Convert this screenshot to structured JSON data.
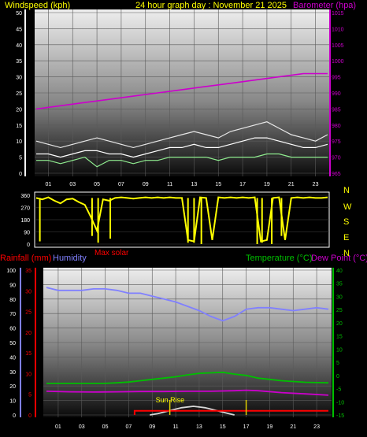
{
  "header": {
    "left_title": "Windspeed (kph)",
    "center_title": "24 hour graph day : November 21 2025",
    "right_title": "Barometer (hpa)"
  },
  "labels": {
    "rain": "Rainfall (mm)",
    "humidity": "Humidity",
    "max_solar": "Max solar",
    "temperature": "Temperature (°C)",
    "dew_point": "Dew Point (°C)",
    "sun_rise": "Sun Rise"
  },
  "colors": {
    "windspeed": "#ffffff",
    "gust": "#e8e8e8",
    "avg_wind": "#90ee90",
    "barometer": "#cc00cc",
    "direction": "#ffff00",
    "rain": "#ff0000",
    "humidity": "#8080ff",
    "temperature": "#00c000",
    "dew_point": "#cc00cc",
    "solar": "#d8d8d8",
    "title": "#ffff00",
    "axis_text": "#ffffff"
  },
  "chart_data": [
    {
      "type": "line",
      "name": "wind_barometer",
      "x_ticks": [
        "01",
        "03",
        "05",
        "07",
        "09",
        "11",
        "13",
        "15",
        "17",
        "19",
        "21",
        "23"
      ],
      "y_left_label": "Windspeed (kph)",
      "y_left_ticks": [
        0,
        5,
        10,
        15,
        20,
        25,
        30,
        35,
        40,
        45,
        50
      ],
      "y_left_range": [
        0,
        50
      ],
      "y_right_label": "Barometer (hpa)",
      "y_right_ticks": [
        965,
        970,
        975,
        980,
        985,
        990,
        995,
        1000,
        1005,
        1010,
        1015
      ],
      "y_right_range": [
        965,
        1015
      ],
      "series": [
        {
          "key": "gust",
          "hours": [
            0,
            1,
            2,
            3,
            4,
            5,
            6,
            7,
            8,
            9,
            10,
            11,
            12,
            13,
            14,
            15,
            16,
            17,
            18,
            19,
            20,
            21,
            22,
            23,
            24
          ],
          "values": [
            10,
            9,
            8,
            9,
            10,
            11,
            10,
            9,
            8,
            9,
            10,
            11,
            12,
            13,
            12,
            11,
            13,
            14,
            15,
            16,
            14,
            12,
            11,
            10,
            12
          ],
          "axis": "left"
        },
        {
          "key": "windspeed",
          "hours": [
            0,
            1,
            2,
            3,
            4,
            5,
            6,
            7,
            8,
            9,
            10,
            11,
            12,
            13,
            14,
            15,
            16,
            17,
            18,
            19,
            20,
            21,
            22,
            23,
            24
          ],
          "values": [
            6,
            6,
            5,
            6,
            7,
            7,
            6,
            6,
            5,
            6,
            7,
            8,
            8,
            9,
            8,
            8,
            9,
            10,
            11,
            11,
            10,
            9,
            8,
            8,
            9
          ],
          "axis": "left"
        },
        {
          "key": "avg_wind",
          "hours": [
            0,
            1,
            2,
            3,
            4,
            5,
            6,
            7,
            8,
            9,
            10,
            11,
            12,
            13,
            14,
            15,
            16,
            17,
            18,
            19,
            20,
            21,
            22,
            23,
            24
          ],
          "values": [
            4,
            4,
            3,
            4,
            5,
            2,
            4,
            4,
            3,
            4,
            4,
            5,
            5,
            5,
            5,
            4,
            5,
            5,
            5,
            6,
            6,
            5,
            5,
            5,
            5
          ],
          "axis": "left"
        },
        {
          "key": "barometer",
          "hours": [
            0,
            2,
            4,
            6,
            8,
            10,
            12,
            14,
            16,
            18,
            20,
            22,
            24
          ],
          "values": [
            985,
            986,
            987,
            988,
            989,
            990,
            991,
            992,
            993,
            994,
            995,
            996,
            996
          ],
          "axis": "right"
        }
      ]
    },
    {
      "type": "scatter",
      "name": "wind_direction",
      "y_ticks": [
        0,
        90,
        180,
        270,
        360
      ],
      "y_range": [
        0,
        360
      ],
      "compass": [
        "N",
        "W",
        "S",
        "E",
        "N"
      ],
      "series": [
        {
          "key": "direction",
          "hours": [
            0,
            0.5,
            1,
            1.5,
            2,
            2.5,
            3,
            3.5,
            4,
            4.5,
            5,
            5.5,
            6,
            6.5,
            7,
            7.5,
            8,
            8.5,
            9,
            9.5,
            10,
            10.5,
            11,
            11.5,
            12,
            12.5,
            13,
            13.5,
            14,
            14.5,
            15,
            15.5,
            16,
            16.5,
            17,
            17.5,
            18,
            18.5,
            19,
            19.5,
            20,
            20.5,
            21,
            21.5,
            22,
            22.5,
            23,
            23.5,
            24
          ],
          "values": [
            340,
            330,
            345,
            320,
            300,
            330,
            335,
            310,
            290,
            200,
            100,
            330,
            320,
            340,
            345,
            340,
            335,
            340,
            345,
            340,
            345,
            340,
            345,
            340,
            340,
            30,
            20,
            345,
            340,
            30,
            345,
            340,
            345,
            340,
            345,
            340,
            345,
            20,
            30,
            340,
            345,
            30,
            340,
            345,
            340,
            345,
            340,
            340,
            345
          ]
        }
      ],
      "drops": [
        {
          "hour": 0.3,
          "value": 20
        },
        {
          "hour": 4.6,
          "value": 60
        },
        {
          "hour": 5.1,
          "value": 10
        },
        {
          "hour": 6.1,
          "value": 40
        },
        {
          "hour": 12.5,
          "value": 10
        },
        {
          "hour": 13.0,
          "value": 10
        },
        {
          "hour": 13.6,
          "value": 0
        },
        {
          "hour": 18.2,
          "value": 0
        },
        {
          "hour": 18.6,
          "value": 10
        },
        {
          "hour": 19.4,
          "value": 0
        },
        {
          "hour": 20.2,
          "value": 60
        }
      ]
    },
    {
      "type": "line",
      "name": "rain_humidity_temperature",
      "x_ticks": [
        "01",
        "03",
        "05",
        "07",
        "09",
        "11",
        "13",
        "15",
        "17",
        "19",
        "21",
        "23"
      ],
      "y_left_ticks": [
        0,
        10,
        20,
        30,
        40,
        50,
        60,
        70,
        80,
        90,
        100
      ],
      "y_left_range": [
        0,
        100
      ],
      "rain_ticks": [
        0,
        5,
        10,
        15,
        20,
        25,
        30,
        35
      ],
      "rain_range": [
        0,
        35
      ],
      "y_right_ticks": [
        -15,
        -10,
        -5,
        0,
        5,
        10,
        15,
        20,
        25,
        30,
        35,
        40
      ],
      "y_right_range": [
        -15,
        40
      ],
      "series": [
        {
          "key": "humidity",
          "axis": "left",
          "hours": [
            0,
            1,
            2,
            3,
            4,
            5,
            6,
            7,
            8,
            9,
            10,
            11,
            12,
            13,
            14,
            15,
            16,
            17,
            18,
            19,
            20,
            21,
            22,
            23,
            24
          ],
          "values": [
            88,
            86,
            86,
            86,
            87,
            87,
            86,
            84,
            84,
            82,
            80,
            78,
            75,
            72,
            68,
            65,
            68,
            73,
            74,
            74,
            73,
            72,
            73,
            74,
            73
          ]
        },
        {
          "key": "temperature",
          "axis": "right",
          "hours": [
            0,
            1,
            2,
            3,
            4,
            5,
            6,
            7,
            8,
            9,
            10,
            11,
            12,
            13,
            14,
            15,
            16,
            17,
            18,
            19,
            20,
            21,
            22,
            23,
            24
          ],
          "values": [
            -3,
            -3,
            -3,
            -3,
            -3,
            -3,
            -2.8,
            -2.5,
            -2,
            -1.5,
            -1,
            -0.5,
            0.2,
            0.8,
            1,
            1.2,
            0.5,
            0,
            -1,
            -1.5,
            -2,
            -2.3,
            -2.6,
            -2.7,
            -2.8
          ]
        },
        {
          "key": "dew_point",
          "axis": "right",
          "hours": [
            0,
            2,
            4,
            6,
            8,
            10,
            12,
            14,
            16,
            17,
            18,
            20,
            22,
            24
          ],
          "values": [
            -6,
            -6.2,
            -6.3,
            -6.2,
            -6.1,
            -6.1,
            -6,
            -6,
            -5.8,
            -5.6,
            -5.8,
            -6.5,
            -7,
            -7.5
          ]
        },
        {
          "key": "solar",
          "axis": "left",
          "hours": [
            8.8,
            9.5,
            10.5,
            11.5,
            12.5,
            13.5,
            14.5,
            15.5,
            16
          ],
          "values": [
            0,
            1,
            3,
            5,
            6,
            5,
            3,
            1,
            0
          ]
        },
        {
          "key": "rain",
          "axis": "rain",
          "hours": [
            7.5,
            7.5,
            24
          ],
          "values": [
            0,
            1,
            1
          ]
        }
      ],
      "markers": [
        {
          "key": "sun_rise",
          "hour": 10.5
        },
        {
          "key": "sun_rise_tick",
          "hour": 17.0
        }
      ]
    }
  ]
}
